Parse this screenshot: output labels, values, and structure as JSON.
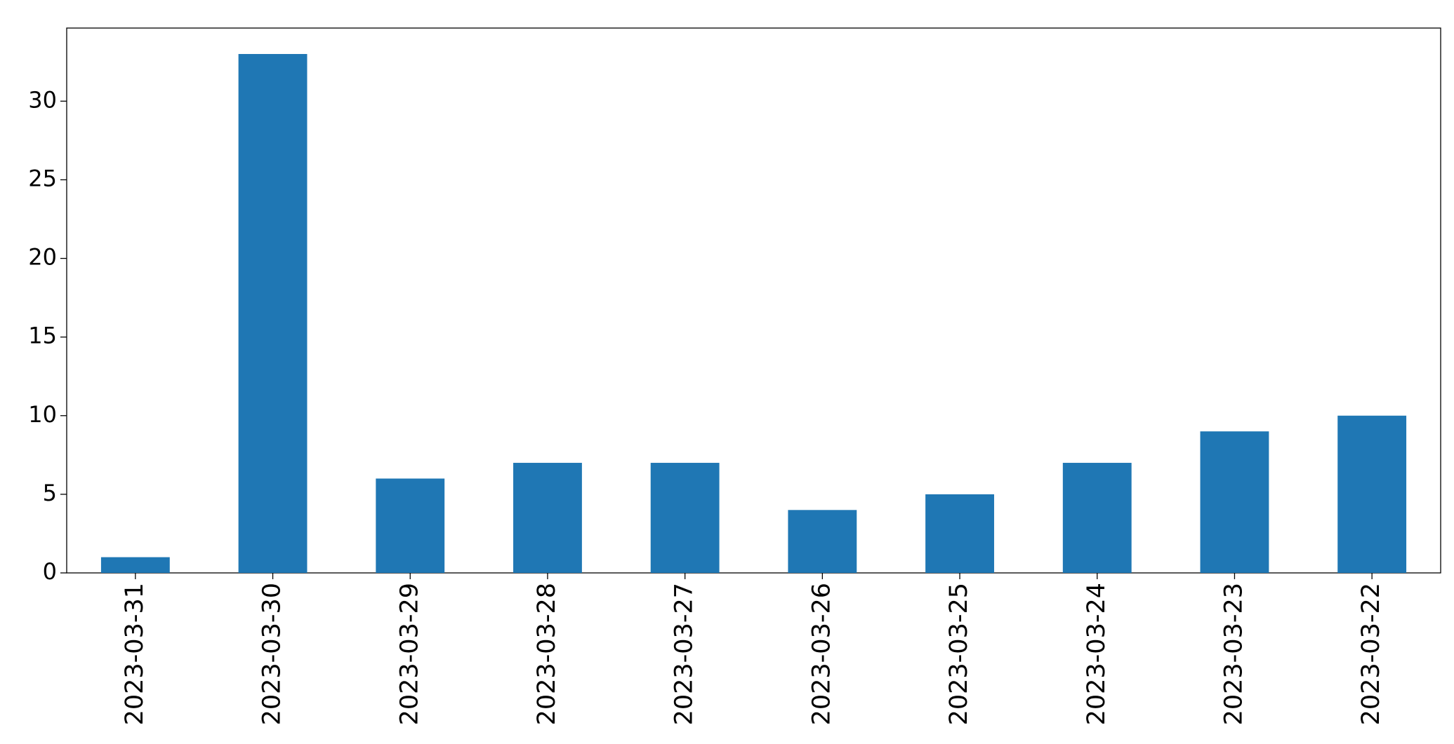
{
  "chart_data": {
    "type": "bar",
    "categories": [
      "2023-03-31",
      "2023-03-30",
      "2023-03-29",
      "2023-03-28",
      "2023-03-27",
      "2023-03-26",
      "2023-03-25",
      "2023-03-24",
      "2023-03-23",
      "2023-03-22"
    ],
    "values": [
      1,
      33,
      6,
      7,
      7,
      4,
      5,
      7,
      9,
      10
    ],
    "color": "#1f77b4",
    "ylim": [
      0,
      34.65
    ],
    "yticks": [
      0,
      5,
      10,
      15,
      20,
      25,
      30
    ],
    "grid": false
  }
}
